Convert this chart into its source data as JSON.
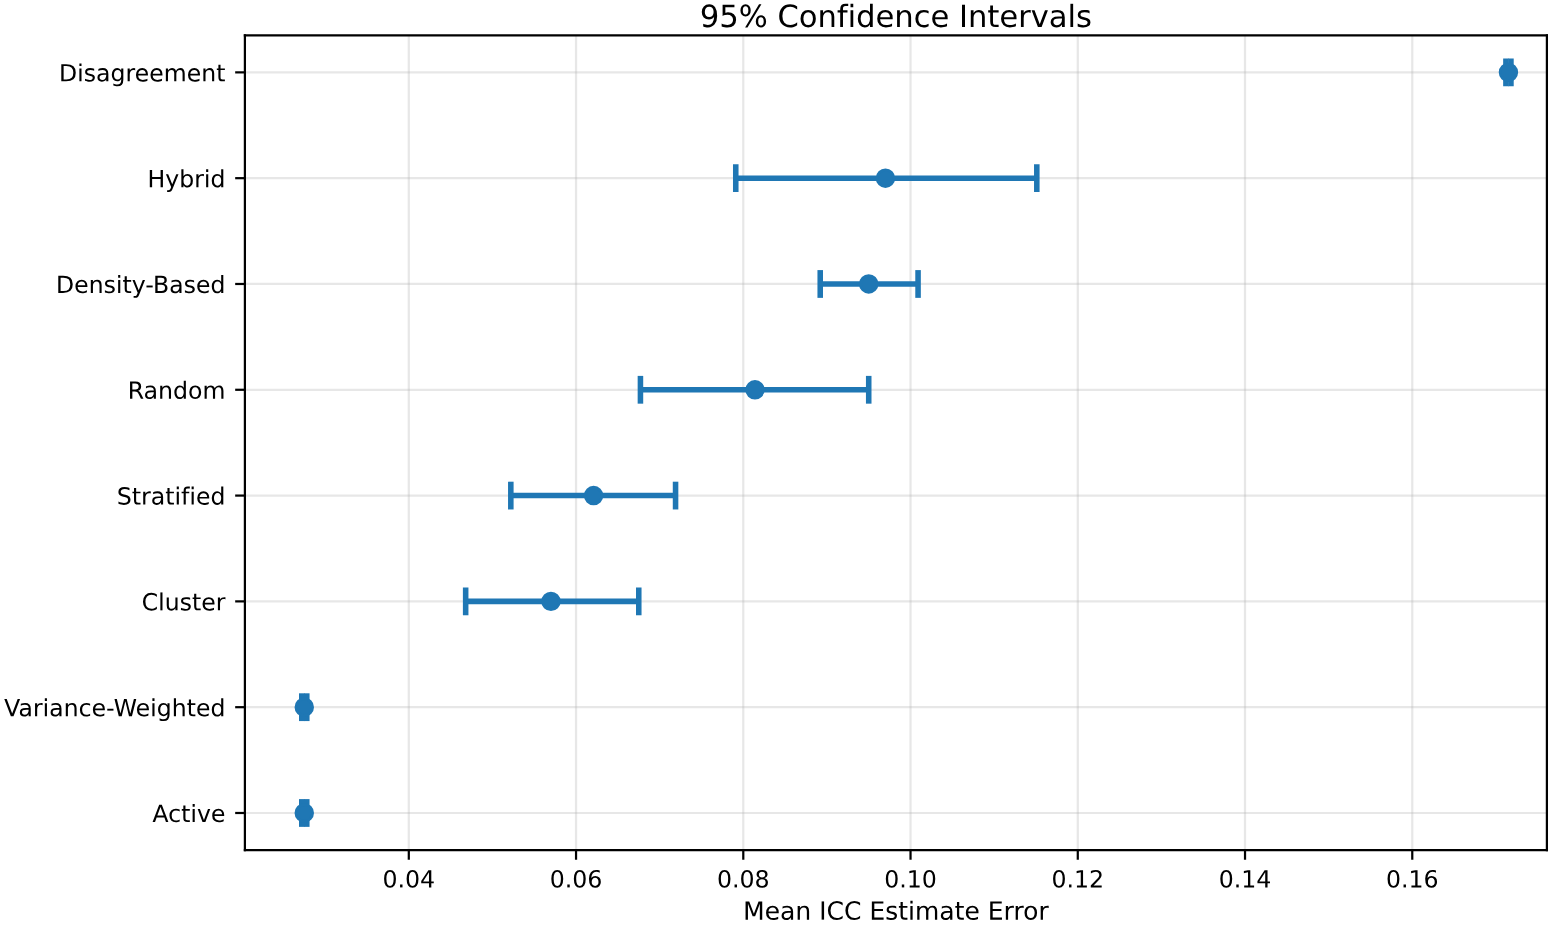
{
  "chart_data": {
    "type": "scatter",
    "orientation": "horizontal",
    "title": "95% Confidence Intervals",
    "xlabel": "Mean ICC Estimate Error",
    "categories": [
      "Disagreement",
      "Hybrid",
      "Density-Based",
      "Random",
      "Stratified",
      "Cluster",
      "Variance-Weighted",
      "Active"
    ],
    "series": [
      {
        "color": "#1f77b4",
        "values": [
          0.1715,
          0.097,
          0.095,
          0.0814,
          0.0621,
          0.057,
          0.0275,
          0.0275
        ],
        "errors": [
          [
            0.1712,
            0.1718
          ],
          [
            0.0791,
            0.1151
          ],
          [
            0.0892,
            0.1009
          ],
          [
            0.0677,
            0.095
          ],
          [
            0.0522,
            0.0719
          ],
          [
            0.0468,
            0.0675
          ],
          [
            0.0272,
            0.0278
          ],
          [
            0.0272,
            0.0278
          ]
        ]
      }
    ],
    "xlim": [
      0.0204,
      0.1761
    ],
    "xticks": [
      0.04,
      0.06,
      0.08,
      {
        "value": 0.1,
        "label": "0.10"
      },
      0.12,
      0.14,
      0.16
    ],
    "grid": true,
    "marker": "circle"
  }
}
